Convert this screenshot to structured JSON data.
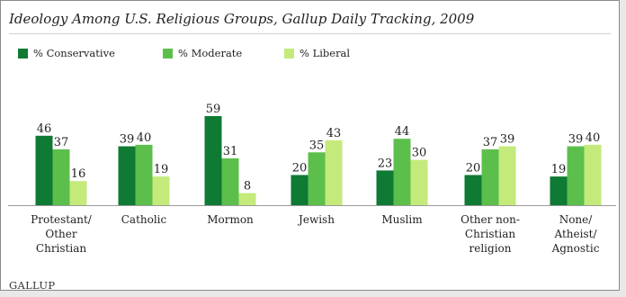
{
  "title": "Ideology Among U.S. Religious Groups, Gallup Daily Tracking, 2009",
  "logo": "GALLUP",
  "chart_data": {
    "type": "bar",
    "title": "Ideology Among U.S. Religious Groups, Gallup Daily Tracking, 2009",
    "categories": [
      [
        "Protestant/",
        "Other",
        "Christian"
      ],
      [
        "Catholic"
      ],
      [
        "Mormon"
      ],
      [
        "Jewish"
      ],
      [
        "Muslim"
      ],
      [
        "Other non-",
        "Christian",
        "religion"
      ],
      [
        "None/",
        "Atheist/",
        "Agnostic"
      ]
    ],
    "series": [
      {
        "name": "% Conservative",
        "color": "#0e7a34",
        "values": [
          46,
          39,
          59,
          20,
          23,
          20,
          19
        ]
      },
      {
        "name": "% Moderate",
        "color": "#5cbf4c",
        "values": [
          37,
          40,
          31,
          35,
          44,
          37,
          39
        ]
      },
      {
        "name": "% Liberal",
        "color": "#c4ea7c",
        "values": [
          16,
          19,
          8,
          43,
          30,
          39,
          40
        ]
      }
    ],
    "ylim": [
      0,
      60
    ],
    "grid": false,
    "legend": "top-left",
    "data_labels": true
  }
}
